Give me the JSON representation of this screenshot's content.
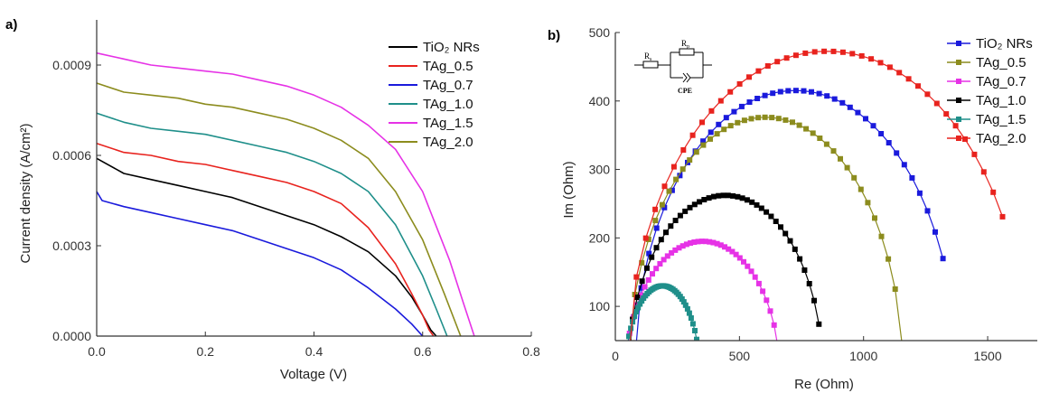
{
  "chart_data": [
    {
      "panel": "a)",
      "type": "line",
      "xlabel": "Voltage (V)",
      "ylabel": "Current density (A/cm²)",
      "xlim": [
        0.0,
        0.8
      ],
      "ylim": [
        0.0,
        0.00105
      ],
      "xticks": [
        "0.0",
        "0.2",
        "0.4",
        "0.6",
        "0.8"
      ],
      "yticks": [
        "0.0000",
        "0.0003",
        "0.0006",
        "0.0009"
      ],
      "xtick_values": [
        0.0,
        0.2,
        0.4,
        0.6,
        0.8
      ],
      "ytick_values": [
        0.0,
        0.0003,
        0.0006,
        0.0009
      ],
      "legend": "top-right",
      "series": [
        {
          "name": "TiO₂ NRs",
          "color": "#000000",
          "x": [
            0.0,
            0.05,
            0.1,
            0.15,
            0.2,
            0.25,
            0.3,
            0.35,
            0.4,
            0.45,
            0.5,
            0.55,
            0.58,
            0.6,
            0.615,
            0.625
          ],
          "y": [
            0.00059,
            0.00054,
            0.00052,
            0.0005,
            0.00048,
            0.00046,
            0.00043,
            0.0004,
            0.00037,
            0.00033,
            0.00028,
            0.0002,
            0.00013,
            7e-05,
            2e-05,
            0.0
          ]
        },
        {
          "name": "TAg_0.5",
          "color": "#e8231e",
          "x": [
            0.0,
            0.05,
            0.1,
            0.15,
            0.2,
            0.25,
            0.3,
            0.35,
            0.4,
            0.45,
            0.5,
            0.55,
            0.58,
            0.6,
            0.612,
            0.62
          ],
          "y": [
            0.00064,
            0.00061,
            0.0006,
            0.00058,
            0.00057,
            0.00055,
            0.00053,
            0.00051,
            0.00048,
            0.00044,
            0.00036,
            0.00024,
            0.00014,
            7e-05,
            2e-05,
            0.0
          ]
        },
        {
          "name": "TAg_0.7",
          "color": "#1a1adc",
          "x": [
            0.0,
            0.01,
            0.05,
            0.1,
            0.15,
            0.2,
            0.25,
            0.3,
            0.35,
            0.4,
            0.45,
            0.5,
            0.55,
            0.58,
            0.6
          ],
          "y": [
            0.00048,
            0.00045,
            0.00043,
            0.00041,
            0.00039,
            0.00037,
            0.00035,
            0.00032,
            0.00029,
            0.00026,
            0.00022,
            0.00016,
            9e-05,
            4e-05,
            0.0
          ]
        },
        {
          "name": "TAg_1.0",
          "color": "#1f8f8a",
          "x": [
            0.0,
            0.05,
            0.1,
            0.15,
            0.2,
            0.25,
            0.3,
            0.35,
            0.4,
            0.45,
            0.5,
            0.55,
            0.6,
            0.625,
            0.645
          ],
          "y": [
            0.00074,
            0.00071,
            0.00069,
            0.00068,
            0.00067,
            0.00065,
            0.00063,
            0.00061,
            0.00058,
            0.00054,
            0.00048,
            0.00037,
            0.0002,
            9e-05,
            0.0
          ]
        },
        {
          "name": "TAg_1.5",
          "color": "#e632e6",
          "x": [
            0.0,
            0.05,
            0.1,
            0.15,
            0.2,
            0.25,
            0.3,
            0.35,
            0.4,
            0.45,
            0.5,
            0.55,
            0.6,
            0.65,
            0.675,
            0.695
          ],
          "y": [
            0.00094,
            0.00092,
            0.0009,
            0.00089,
            0.00088,
            0.00087,
            0.00085,
            0.00083,
            0.0008,
            0.00076,
            0.0007,
            0.00062,
            0.00048,
            0.00025,
            0.00011,
            0.0
          ]
        },
        {
          "name": "TAg_2.0",
          "color": "#8c8c1e",
          "x": [
            0.0,
            0.05,
            0.1,
            0.15,
            0.2,
            0.25,
            0.3,
            0.35,
            0.4,
            0.45,
            0.5,
            0.55,
            0.6,
            0.64,
            0.67
          ],
          "y": [
            0.00084,
            0.00081,
            0.0008,
            0.00079,
            0.00077,
            0.00076,
            0.00074,
            0.00072,
            0.00069,
            0.00065,
            0.00059,
            0.00048,
            0.00032,
            0.00014,
            0.0
          ]
        }
      ]
    },
    {
      "panel": "b)",
      "type": "scatter",
      "xlabel": "Re (Ohm)",
      "ylabel": "Im (Ohm)",
      "xlim": [
        0,
        1700
      ],
      "ylim": [
        50,
        500
      ],
      "xticks": [
        "0",
        "500",
        "1000",
        "1500"
      ],
      "yticks": [
        "100",
        "200",
        "300",
        "400",
        "500"
      ],
      "xtick_values": [
        0,
        500,
        1000,
        1500
      ],
      "ytick_values": [
        100,
        200,
        300,
        400,
        500
      ],
      "legend": "top-right",
      "inset": {
        "labels": [
          "R",
          "s",
          "R",
          "p",
          "CPE"
        ]
      },
      "series": [
        {
          "name": "TiO₂ NRs",
          "color": "#1a1adc",
          "marker": "square",
          "center": 725,
          "radius": 652,
          "scale": 0.637,
          "x_end": 1320
        },
        {
          "name": "TAg_0.5",
          "color": "#8c8c1e",
          "marker": "square",
          "center": 605,
          "radius": 554,
          "scale": 0.679,
          "x_end": 1155
        },
        {
          "name": "TAg_0.7",
          "color": "#e632e6",
          "marker": "square",
          "center": 352,
          "radius": 310,
          "scale": 0.629,
          "x_end": 655
        },
        {
          "name": "TAg_1.0",
          "color": "#000000",
          "marker": "square",
          "center": 443,
          "radius": 393,
          "scale": 0.667,
          "x_end": 820
        },
        {
          "name": "TAg_1.5",
          "color": "#1f8f8a",
          "marker": "square",
          "center": 190,
          "radius": 150,
          "scale": 0.867,
          "x_end": 335
        },
        {
          "name": "TAg_2.0",
          "color": "#e8231e",
          "marker": "square",
          "center": 855,
          "radius": 808,
          "scale": 0.585,
          "x_end": 1560
        }
      ]
    }
  ]
}
